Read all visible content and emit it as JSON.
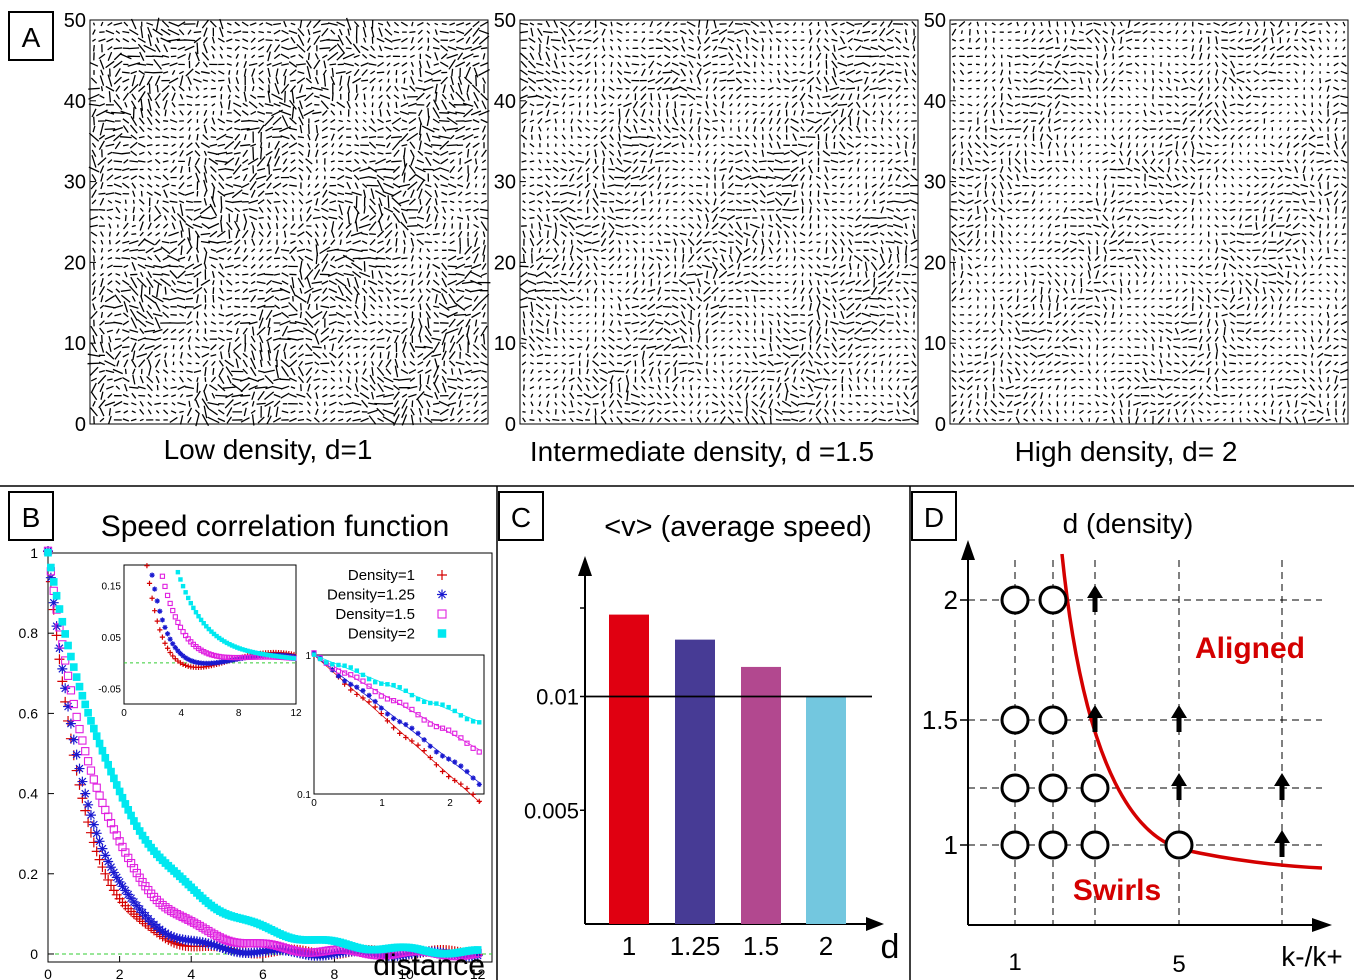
{
  "panel_labels": {
    "a": "A",
    "b": "B",
    "c": "C",
    "d": "D"
  },
  "panel_a": {
    "ticks": [
      "0",
      "10",
      "20",
      "30",
      "40",
      "50"
    ],
    "captions": [
      "Low density, d=1",
      "Intermediate density, d =1.5",
      "High density, d= 2"
    ]
  },
  "chart_data": [
    {
      "type": "scatter",
      "title": "Speed correlation function",
      "xlabel": "distance",
      "ylabel": "",
      "xlim": [
        0,
        12.4
      ],
      "ylim": [
        -0.02,
        1.0
      ],
      "x_ticks": [
        "0",
        "2",
        "4",
        "6",
        "8",
        "10",
        "12"
      ],
      "y_ticks": [
        "0",
        "0.2",
        "0.4",
        "0.6",
        "0.8",
        "1"
      ],
      "legend_position": "top-right",
      "series": [
        {
          "name": "Density=1",
          "marker": "+",
          "color": "#d40000",
          "corr_length": 1.0
        },
        {
          "name": "Density=1.25",
          "marker": "*",
          "color": "#1a1ad0",
          "corr_length": 1.15
        },
        {
          "name": "Density=1.5",
          "marker": "square-open",
          "color": "#e020e0",
          "corr_length": 1.55
        },
        {
          "name": "Density=2",
          "marker": "square-filled",
          "color": "#00e8f0",
          "corr_length": 2.2
        }
      ],
      "insets": [
        {
          "position": "top-left",
          "x_ticks": [
            "0",
            "4",
            "8",
            "12"
          ],
          "y_ticks": [
            "0.15",
            "0.05",
            "-0.05"
          ]
        },
        {
          "position": "top-right",
          "scale": "log",
          "x_ticks": [
            "0",
            "1",
            "2"
          ],
          "y_ticks": [
            "1",
            "0.1"
          ]
        }
      ]
    },
    {
      "type": "bar",
      "title": "<v> (average speed)",
      "xlabel": "d",
      "categories": [
        "1",
        "1.25",
        "1.5",
        "2"
      ],
      "values": [
        0.0136,
        0.0125,
        0.0113,
        0.01
      ],
      "colors": [
        "#e00011",
        "#473b95",
        "#b2488f",
        "#73c7df"
      ],
      "y_ticks": [
        "0.01",
        "0.005"
      ],
      "reference_line": 0.01
    },
    {
      "type": "scatter",
      "title": "d (density)",
      "xlabel": "k-/k+",
      "x_ticks": [
        "1",
        "5"
      ],
      "y_ticks": [
        "1",
        "1.5",
        "2"
      ],
      "regions": [
        "Aligned",
        "Swirls"
      ],
      "points": [
        {
          "d": 2,
          "state": [
            "swirl",
            "swirl",
            "aligned"
          ]
        },
        {
          "d": 1.5,
          "state": [
            "swirl",
            "swirl",
            "aligned",
            null,
            "aligned"
          ]
        },
        {
          "d": 1.25,
          "state": [
            "swirl",
            "swirl",
            "swirl",
            null,
            "aligned",
            null,
            "aligned"
          ]
        },
        {
          "d": 1,
          "state": [
            "swirl",
            "swirl",
            "swirl",
            null,
            "swirl",
            null,
            "aligned"
          ]
        }
      ]
    }
  ]
}
